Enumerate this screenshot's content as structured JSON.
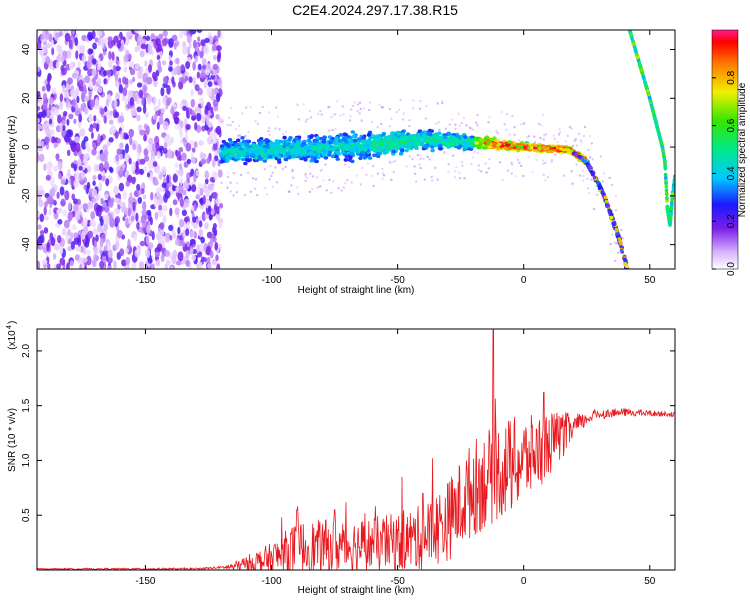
{
  "title": "C2E4.2024.297.17.38.R15",
  "chart_data": [
    {
      "type": "heatmap",
      "xlabel": "Height of straight line (km)",
      "ylabel": "Frequency (Hz)",
      "xlim": [
        -193,
        60
      ],
      "ylim": [
        -50,
        48
      ],
      "xticks": [
        -150,
        -100,
        -50,
        0,
        50
      ],
      "yticks": [
        -40,
        -20,
        0,
        20,
        40
      ],
      "colorbar": {
        "label": "Normalized spectral amplitude",
        "ticks": [
          "0.0",
          "0.2",
          "0.4",
          "0.6",
          "0.8"
        ],
        "range": [
          0,
          1
        ]
      },
      "features": {
        "noise_region_x": [
          -193,
          -120
        ],
        "band_center": [
          [
            -120,
            -2
          ],
          [
            -90,
            -1
          ],
          [
            -60,
            1
          ],
          [
            -40,
            3
          ],
          [
            -20,
            2
          ],
          [
            0,
            0
          ],
          [
            18,
            -1
          ],
          [
            25,
            -6
          ],
          [
            32,
            -20
          ],
          [
            38,
            -38
          ],
          [
            41,
            -50
          ]
        ],
        "band_halfwidth": [
          [
            -120,
            6
          ],
          [
            -60,
            7
          ],
          [
            -30,
            4
          ],
          [
            0,
            2
          ],
          [
            20,
            2
          ]
        ],
        "steep_line": [
          [
            42,
            48
          ],
          [
            50,
            20
          ],
          [
            55,
            0
          ],
          [
            56,
            -6
          ]
        ],
        "notch": [
          [
            56,
            -6
          ],
          [
            57,
            -25
          ],
          [
            58,
            -32
          ],
          [
            59,
            -20
          ],
          [
            60,
            -12
          ]
        ]
      }
    },
    {
      "type": "line",
      "xlabel": "Height of straight line (km)",
      "ylabel": "SNR (10 * v/v)",
      "exponent_label": "(x10",
      "exponent": "4",
      "xlim": [
        -193,
        60
      ],
      "ylim": [
        0,
        2.2
      ],
      "xticks": [
        -150,
        -100,
        -50,
        0,
        50
      ],
      "yticks": [
        "0.5",
        "1.0",
        "1.5",
        "2.0"
      ],
      "color": "#e8191e",
      "series": [
        {
          "envelope_base": [
            [
              -193,
              0.01
            ],
            [
              -130,
              0.01
            ],
            [
              -115,
              0.03
            ],
            [
              -100,
              0.1
            ],
            [
              -90,
              0.2
            ],
            [
              -70,
              0.22
            ],
            [
              -50,
              0.25
            ],
            [
              -40,
              0.3
            ],
            [
              -30,
              0.45
            ],
            [
              -20,
              0.75
            ],
            [
              -10,
              0.9
            ],
            [
              0,
              1.0
            ],
            [
              10,
              1.15
            ],
            [
              20,
              1.3
            ],
            [
              28,
              1.42
            ],
            [
              40,
              1.44
            ],
            [
              60,
              1.42
            ]
          ],
          "noise_amplitude": [
            [
              -193,
              0.005
            ],
            [
              -120,
              0.01
            ],
            [
              -100,
              0.15
            ],
            [
              -90,
              0.25
            ],
            [
              -60,
              0.25
            ],
            [
              -40,
              0.3
            ],
            [
              -20,
              0.45
            ],
            [
              -5,
              0.45
            ],
            [
              10,
              0.3
            ],
            [
              25,
              0.05
            ],
            [
              60,
              0.02
            ]
          ],
          "spikes": [
            [
              -12,
              2.2
            ],
            [
              8,
              1.62
            ],
            [
              -90,
              0.55
            ],
            [
              -75,
              0.55
            ],
            [
              -40,
              0.7
            ]
          ]
        }
      ]
    }
  ]
}
